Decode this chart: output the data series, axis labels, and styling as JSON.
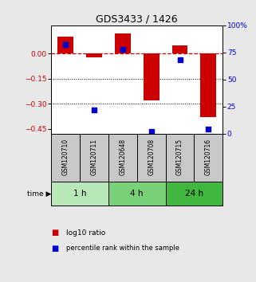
{
  "title": "GDS3433 / 1426",
  "samples": [
    "GSM120710",
    "GSM120711",
    "GSM120648",
    "GSM120708",
    "GSM120715",
    "GSM120716"
  ],
  "log10_ratio": [
    0.1,
    -0.02,
    0.12,
    -0.28,
    0.05,
    -0.38
  ],
  "percentile_rank": [
    82,
    22,
    78,
    2,
    68,
    4
  ],
  "time_groups": [
    {
      "label": "1 h",
      "samples": [
        0,
        1
      ],
      "color": "#b8e8b8"
    },
    {
      "label": "4 h",
      "samples": [
        2,
        3
      ],
      "color": "#78d078"
    },
    {
      "label": "24 h",
      "samples": [
        4,
        5
      ],
      "color": "#40b840"
    }
  ],
  "ylim_left": [
    -0.48,
    0.17
  ],
  "ylim_right": [
    0,
    100
  ],
  "yticks_left": [
    0,
    -0.15,
    -0.3,
    -0.45
  ],
  "yticks_right": [
    0,
    25,
    50,
    75,
    100
  ],
  "bar_color": "#cc0000",
  "dot_color": "#0000cc",
  "hline_color": "#cc0000",
  "dotted_line_color": "#000000",
  "background_color": "#e8e8e8",
  "plot_bg": "#ffffff",
  "title_color": "#000000",
  "left_axis_color": "#cc0000",
  "right_axis_color": "#0000cc",
  "sample_box_color": "#c8c8c8"
}
